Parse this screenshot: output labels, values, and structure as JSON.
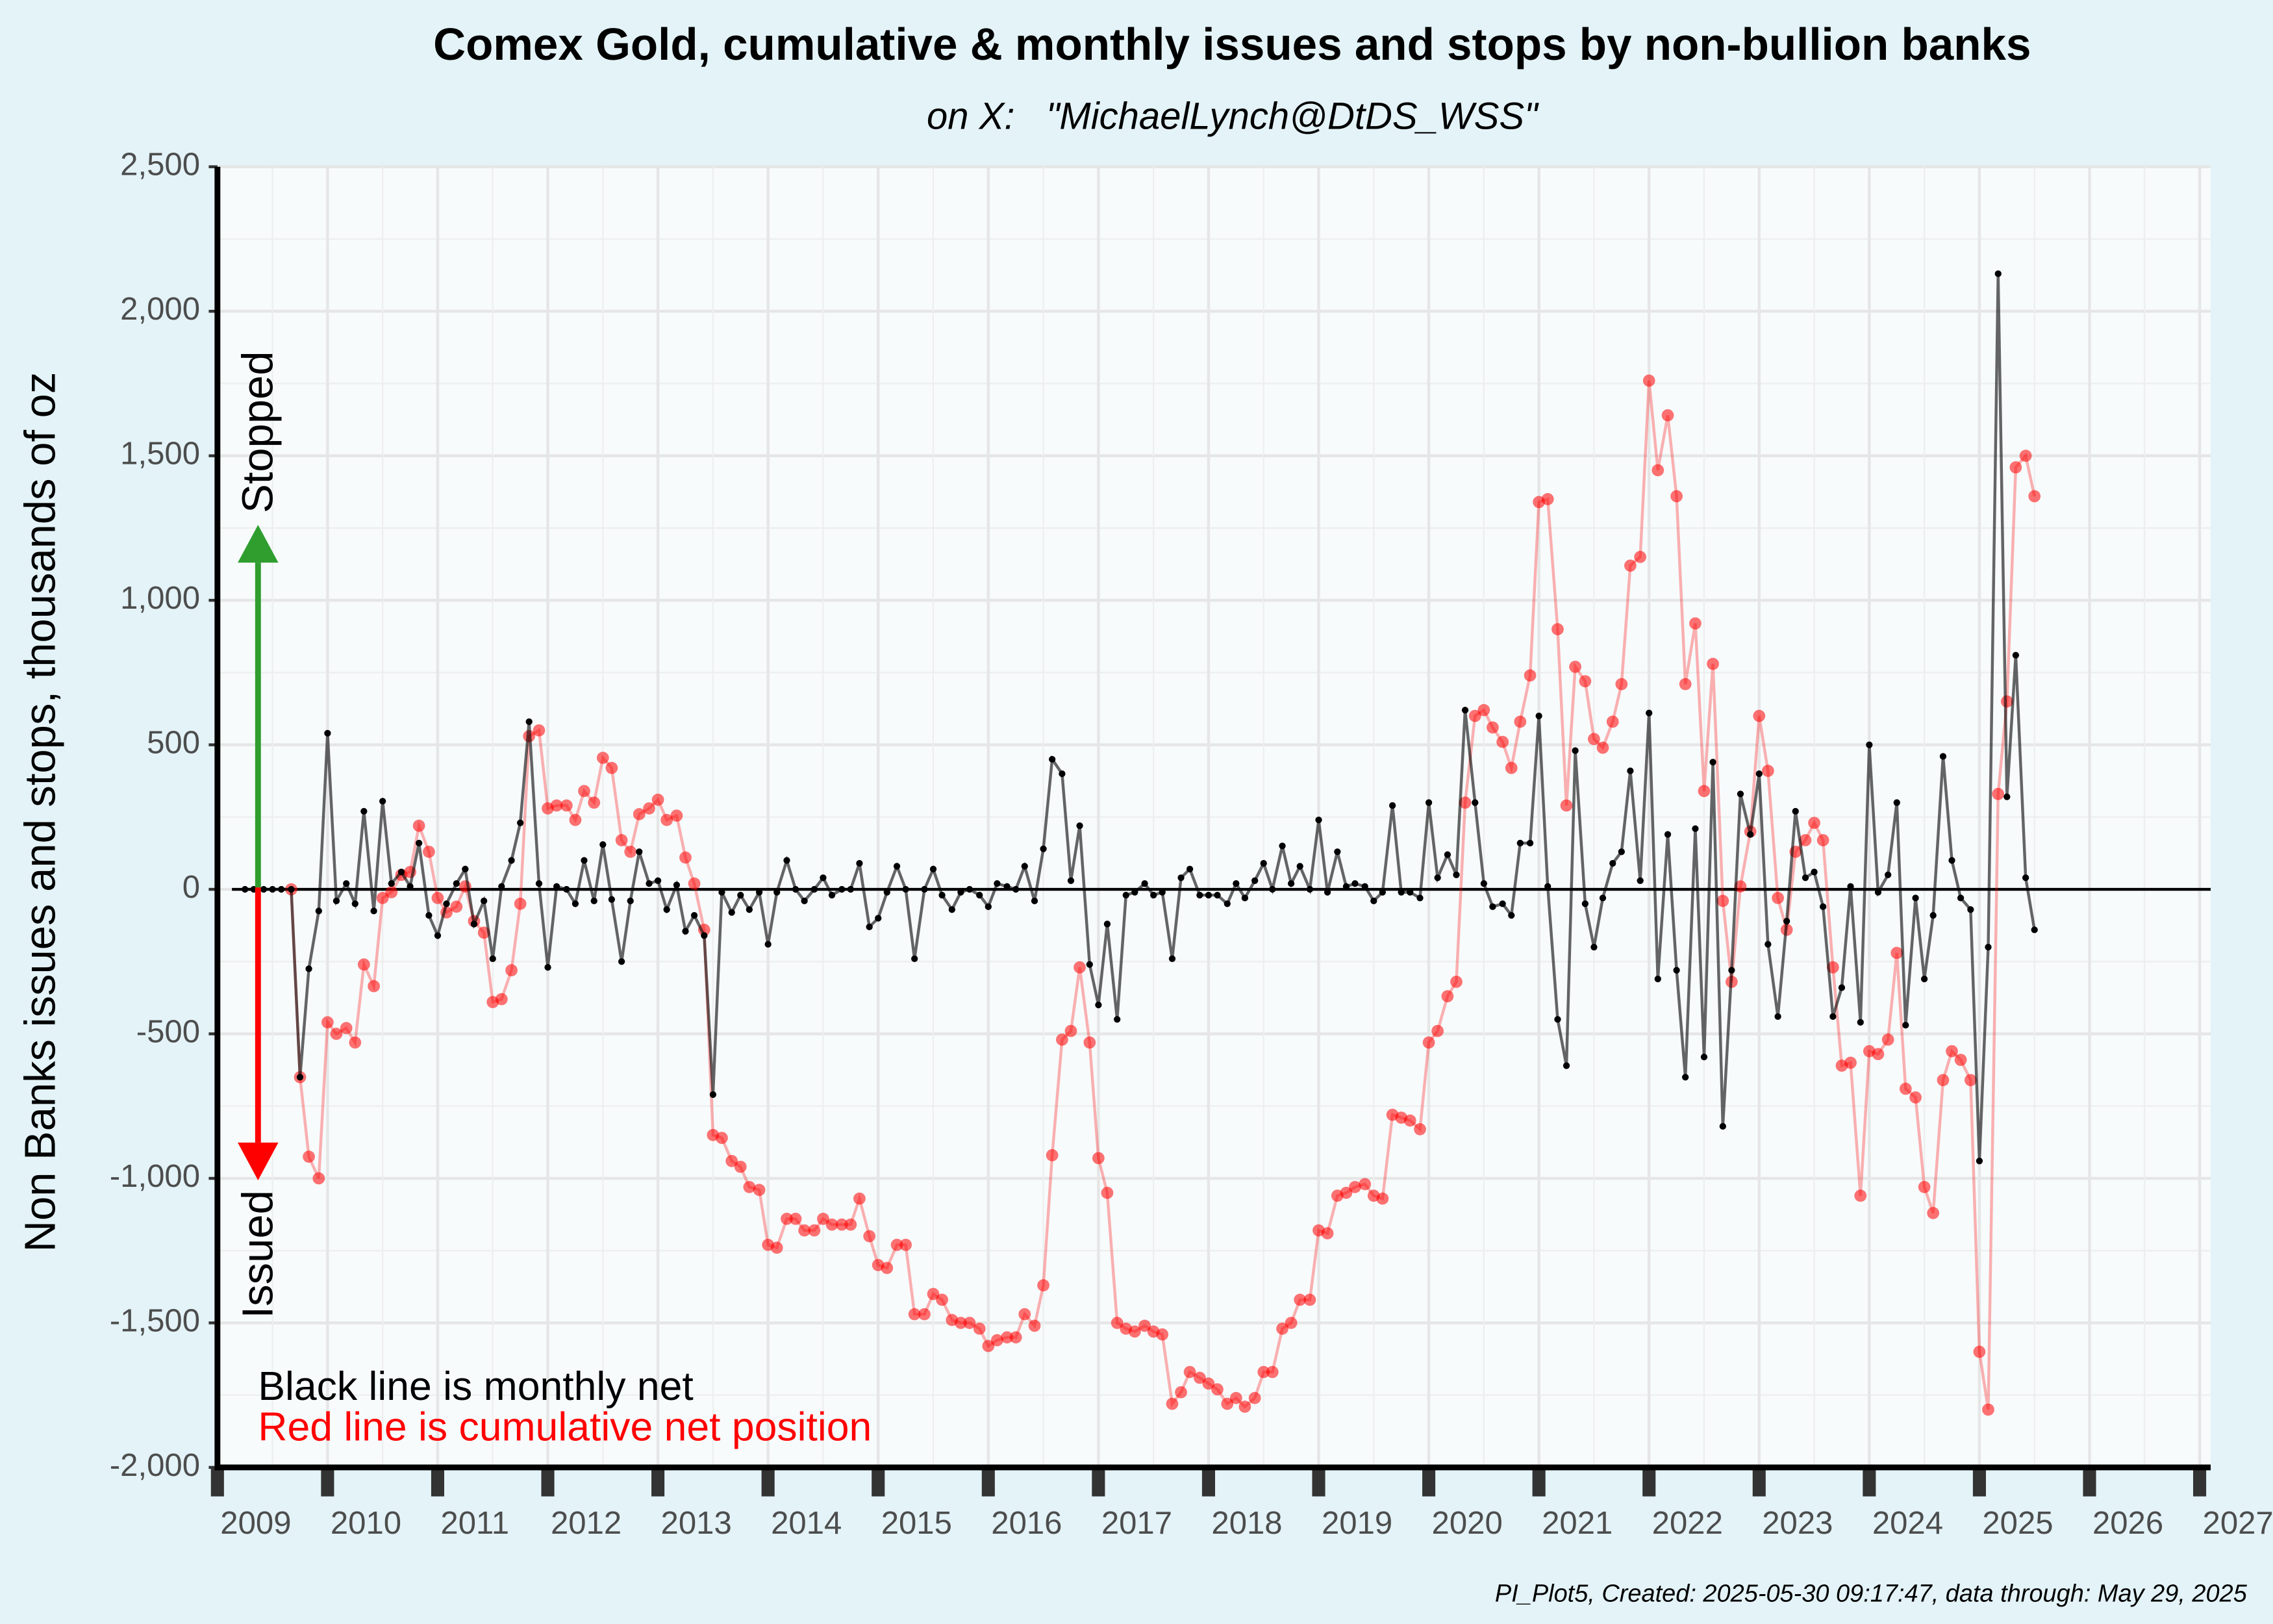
{
  "chart_data": {
    "type": "line",
    "title": "Comex Gold, cumulative & monthly issues and stops by non-bullion banks",
    "subtitle": "on X:   \"MichaelLynch@DtDS_WSS\"",
    "y_label": "Non Banks issues and stops, thousands of oz",
    "caption": "PI_Plot5, Created: 2025-05-30 09:17:47, data through: May 29, 2025",
    "annotations": [
      {
        "text": "Stopped",
        "color": "#2f9e2f"
      },
      {
        "text": "Issued",
        "color": "#ff0000"
      },
      {
        "text": "Black line is monthly net",
        "color": "#000000"
      },
      {
        "text": "Red line is cumulative net position",
        "color": "#ff0000"
      }
    ],
    "xlim": [
      2009,
      2027.1
    ],
    "xticks": [
      2009,
      2010,
      2011,
      2012,
      2013,
      2014,
      2015,
      2016,
      2017,
      2018,
      2019,
      2020,
      2021,
      2022,
      2023,
      2024,
      2025,
      2026,
      2027
    ],
    "ylim": [
      -2000,
      2500
    ],
    "yticks": [
      {
        "value": -2000,
        "label": "-2,000"
      },
      {
        "value": -1500,
        "label": "-1,500"
      },
      {
        "value": -1000,
        "label": "-1,000"
      },
      -500,
      0,
      500,
      {
        "value": 1000,
        "label": "1,000"
      },
      {
        "value": 1500,
        "label": "1,500"
      },
      {
        "value": 2000,
        "label": "2,000"
      },
      {
        "value": 2500,
        "label": "2,500"
      }
    ],
    "grid": true,
    "hline": 0,
    "x": [
      2009.25,
      2009.33,
      2009.42,
      2009.5,
      2009.58,
      2009.67,
      2009.75,
      2009.83,
      2009.92,
      2010,
      2010.08,
      2010.17,
      2010.25,
      2010.33,
      2010.42,
      2010.5,
      2010.58,
      2010.67,
      2010.75,
      2010.83,
      2010.92,
      2011,
      2011.08,
      2011.17,
      2011.25,
      2011.33,
      2011.42,
      2011.5,
      2011.58,
      2011.67,
      2011.75,
      2011.83,
      2011.92,
      2012,
      2012.08,
      2012.17,
      2012.25,
      2012.33,
      2012.42,
      2012.5,
      2012.58,
      2012.67,
      2012.75,
      2012.83,
      2012.92,
      2013,
      2013.08,
      2013.17,
      2013.25,
      2013.33,
      2013.42,
      2013.5,
      2013.58,
      2013.67,
      2013.75,
      2013.83,
      2013.92,
      2014,
      2014.08,
      2014.17,
      2014.25,
      2014.33,
      2014.42,
      2014.5,
      2014.58,
      2014.67,
      2014.75,
      2014.83,
      2014.92,
      2015,
      2015.08,
      2015.17,
      2015.25,
      2015.33,
      2015.42,
      2015.5,
      2015.58,
      2015.67,
      2015.75,
      2015.83,
      2015.92,
      2016,
      2016.08,
      2016.17,
      2016.25,
      2016.33,
      2016.42,
      2016.5,
      2016.58,
      2016.67,
      2016.75,
      2016.83,
      2016.92,
      2017,
      2017.08,
      2017.17,
      2017.25,
      2017.33,
      2017.42,
      2017.5,
      2017.58,
      2017.67,
      2017.75,
      2017.83,
      2017.92,
      2018,
      2018.08,
      2018.17,
      2018.25,
      2018.33,
      2018.42,
      2018.5,
      2018.58,
      2018.67,
      2018.75,
      2018.83,
      2018.92,
      2019,
      2019.08,
      2019.17,
      2019.25,
      2019.33,
      2019.42,
      2019.5,
      2019.58,
      2019.67,
      2019.75,
      2019.83,
      2019.92,
      2020,
      2020.08,
      2020.17,
      2020.25,
      2020.33,
      2020.42,
      2020.5,
      2020.58,
      2020.67,
      2020.75,
      2020.83,
      2020.92,
      2021,
      2021.08,
      2021.17,
      2021.25,
      2021.33,
      2021.42,
      2021.5,
      2021.58,
      2021.67,
      2021.75,
      2021.83,
      2021.92,
      2022,
      2022.08,
      2022.17,
      2022.25,
      2022.33,
      2022.42,
      2022.5,
      2022.58,
      2022.67,
      2022.75,
      2022.83,
      2022.92,
      2023,
      2023.08,
      2023.17,
      2023.25,
      2023.33,
      2023.42,
      2023.5,
      2023.58,
      2023.67,
      2023.75,
      2023.83,
      2023.92,
      2024,
      2024.08,
      2024.17,
      2024.25,
      2024.33,
      2024.42,
      2024.5,
      2024.58,
      2024.67,
      2024.75,
      2024.83,
      2024.92,
      2025,
      2025.08,
      2025.17,
      2025.25,
      2025.33,
      2025.42,
      2025.5
    ],
    "series": [
      {
        "color": "#ff0000",
        "values": [
          null,
          null,
          null,
          null,
          null,
          0,
          -650,
          -925,
          -1000,
          -460,
          -500,
          -480,
          -530,
          -260,
          -335,
          -30,
          -10,
          50,
          60,
          220,
          130,
          -30,
          -80,
          -60,
          10,
          -110,
          -150,
          -390,
          -380,
          -280,
          -50,
          530,
          550,
          280,
          290,
          290,
          240,
          340,
          300,
          455,
          420,
          170,
          130,
          260,
          280,
          310,
          240,
          255,
          110,
          20,
          -140,
          -850,
          -860,
          -940,
          -960,
          -1030,
          -1040,
          -1230,
          -1240,
          -1140,
          -1140,
          -1180,
          -1180,
          -1140,
          -1160,
          -1160,
          -1160,
          -1070,
          -1200,
          -1300,
          -1310,
          -1230,
          -1230,
          -1470,
          -1470,
          -1400,
          -1420,
          -1490,
          -1500,
          -1500,
          -1520,
          -1580,
          -1560,
          -1550,
          -1550,
          -1470,
          -1510,
          -1370,
          -920,
          -520,
          -490,
          -270,
          -530,
          -930,
          -1050,
          -1500,
          -1520,
          -1530,
          -1510,
          -1530,
          -1540,
          -1780,
          -1740,
          -1670,
          -1690,
          -1710,
          -1730,
          -1780,
          -1760,
          -1790,
          -1760,
          -1670,
          -1670,
          -1520,
          -1500,
          -1420,
          -1420,
          -1180,
          -1190,
          -1060,
          -1050,
          -1030,
          -1020,
          -1060,
          -1070,
          -780,
          -790,
          -800,
          -830,
          -530,
          -490,
          -370,
          -320,
          300,
          600,
          620,
          560,
          510,
          420,
          580,
          740,
          1340,
          1350,
          900,
          290,
          770,
          720,
          520,
          490,
          580,
          710,
          1120,
          1150,
          1760,
          1450,
          1640,
          1360,
          710,
          920,
          340,
          780,
          -40,
          -320,
          10,
          200,
          600,
          410,
          -30,
          -140,
          130,
          170,
          230,
          170,
          -270,
          -610,
          -600,
          -1060,
          -560,
          -570,
          -520,
          -220,
          -690,
          -720,
          -1030,
          -1120,
          -660,
          -560,
          -590,
          -660,
          -1600,
          -1800,
          330,
          650,
          1460,
          1500,
          1360
        ]
      },
      {
        "color": "#000000",
        "values": [
          0,
          0,
          0,
          0,
          0,
          0,
          -650,
          -275,
          -75,
          540,
          -40,
          20,
          -50,
          270,
          -75,
          305,
          20,
          60,
          10,
          160,
          -90,
          -160,
          -50,
          20,
          70,
          -120,
          -40,
          -240,
          10,
          100,
          230,
          580,
          20,
          -270,
          10,
          0,
          -50,
          100,
          -40,
          155,
          -35,
          -250,
          -40,
          130,
          20,
          30,
          -70,
          15,
          -145,
          -90,
          -160,
          -710,
          -10,
          -80,
          -20,
          -70,
          -10,
          -190,
          -10,
          100,
          0,
          -40,
          0,
          40,
          -20,
          0,
          0,
          90,
          -130,
          -100,
          -10,
          80,
          0,
          -240,
          0,
          70,
          -20,
          -70,
          -10,
          0,
          -20,
          -60,
          20,
          10,
          0,
          80,
          -40,
          140,
          450,
          400,
          30,
          220,
          -260,
          -400,
          -120,
          -450,
          -20,
          -10,
          20,
          -20,
          -10,
          -240,
          40,
          70,
          -20,
          -20,
          -20,
          -50,
          20,
          -30,
          30,
          90,
          0,
          150,
          20,
          80,
          0,
          240,
          -10,
          130,
          10,
          20,
          10,
          -40,
          -10,
          290,
          -10,
          -10,
          -30,
          300,
          40,
          120,
          50,
          620,
          300,
          20,
          -60,
          -50,
          -90,
          160,
          160,
          600,
          10,
          -450,
          -610,
          480,
          -50,
          -200,
          -30,
          90,
          130,
          410,
          30,
          610,
          -310,
          190,
          -280,
          -650,
          210,
          -580,
          440,
          -820,
          -280,
          330,
          190,
          400,
          -190,
          -440,
          -110,
          270,
          40,
          60,
          -60,
          -440,
          -340,
          10,
          -460,
          500,
          -10,
          50,
          300,
          -470,
          -30,
          -310,
          -90,
          460,
          100,
          -30,
          -70,
          -940,
          -200,
          2130,
          320,
          810,
          40,
          -140
        ]
      }
    ]
  }
}
